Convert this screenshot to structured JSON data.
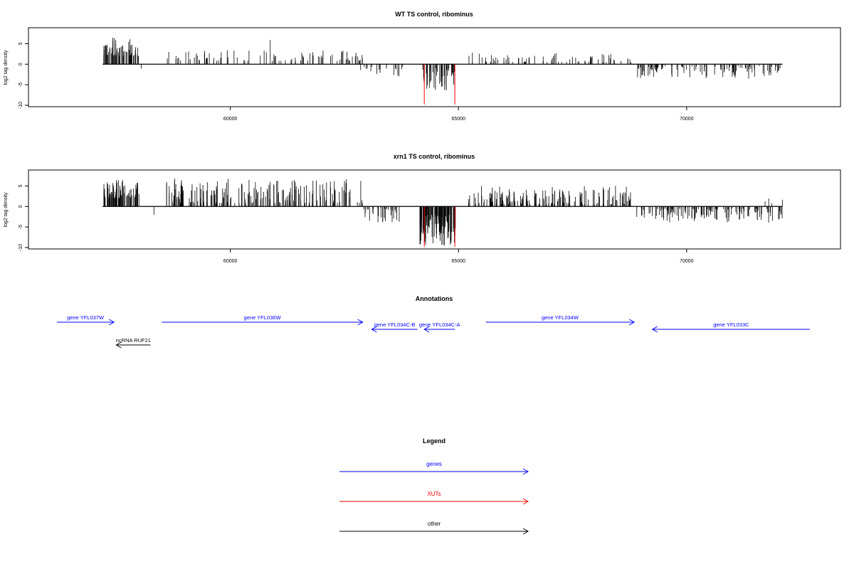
{
  "chart_data": [
    {
      "type": "bar",
      "title": "WT TS control, ribominus",
      "xlabel": "",
      "ylabel": "log2 tag density",
      "xlim": [
        56200,
        72700
      ],
      "ylim": [
        -10,
        7.5
      ],
      "x_ticks": [
        60000,
        65000,
        70000
      ],
      "x_tick_labels": [
        "60000",
        "65000",
        "70000"
      ],
      "y_ticks": [
        5,
        0,
        -5,
        -10
      ],
      "y_tick_labels": [
        "5",
        "0",
        "-5",
        "-10"
      ],
      "baseline": 0,
      "grid": false,
      "regions": [
        {
          "start": 57200,
          "end": 58000,
          "sign": 1,
          "min": 2.0,
          "max": 6.5,
          "count": 60,
          "seed": 11
        },
        {
          "start": 58000,
          "end": 58100,
          "sign": -1,
          "min": 1.0,
          "max": 1.4,
          "count": 1,
          "seed": 12
        },
        {
          "start": 58600,
          "end": 62900,
          "sign": 1,
          "min": 0.8,
          "max": 3.5,
          "count": 90,
          "seed": 13
        },
        {
          "start": 60850,
          "end": 60900,
          "sign": 1,
          "min": 5.9,
          "max": 6.0,
          "count": 1,
          "seed": 14
        },
        {
          "start": 62850,
          "end": 63800,
          "sign": -1,
          "min": 0.5,
          "max": 3.0,
          "count": 20,
          "seed": 15
        },
        {
          "start": 64200,
          "end": 64950,
          "sign": -1,
          "min": 1.0,
          "max": 6.5,
          "count": 45,
          "seed": 16
        },
        {
          "start": 65200,
          "end": 68800,
          "sign": 1,
          "min": 0.5,
          "max": 2.8,
          "count": 75,
          "seed": 17
        },
        {
          "start": 68900,
          "end": 72100,
          "sign": -1,
          "min": 0.5,
          "max": 3.5,
          "count": 110,
          "seed": 18
        }
      ],
      "red_spikes": [
        {
          "x": 64250,
          "y": -9.8
        },
        {
          "x": 64920,
          "y": -9.8
        }
      ]
    },
    {
      "type": "bar",
      "title": "xrn1 TS control, ribominus",
      "xlabel": "",
      "ylabel": "log2 tag density",
      "xlim": [
        56200,
        72700
      ],
      "ylim": [
        -10,
        7.5
      ],
      "x_ticks": [
        60000,
        65000,
        70000
      ],
      "x_tick_labels": [
        "60000",
        "65000",
        "70000"
      ],
      "y_ticks": [
        5,
        0,
        -5,
        -10
      ],
      "y_tick_labels": [
        "5",
        "0",
        "-5",
        "-10"
      ],
      "baseline": 0,
      "grid": false,
      "regions": [
        {
          "start": 57200,
          "end": 58000,
          "sign": 1,
          "min": 2.0,
          "max": 6.8,
          "count": 80,
          "seed": 21
        },
        {
          "start": 58300,
          "end": 58350,
          "sign": -1,
          "min": 2.0,
          "max": 2.2,
          "count": 1,
          "seed": 22
        },
        {
          "start": 58600,
          "end": 62900,
          "sign": 1,
          "min": 0.8,
          "max": 6.8,
          "count": 200,
          "seed": 23
        },
        {
          "start": 62900,
          "end": 63800,
          "sign": -1,
          "min": 0.5,
          "max": 4.0,
          "count": 35,
          "seed": 24
        },
        {
          "start": 64150,
          "end": 64950,
          "sign": -1,
          "min": 2.0,
          "max": 9.5,
          "count": 120,
          "seed": 25
        },
        {
          "start": 65200,
          "end": 68800,
          "sign": 1,
          "min": 0.5,
          "max": 5.0,
          "count": 170,
          "seed": 26
        },
        {
          "start": 68900,
          "end": 72100,
          "sign": -1,
          "min": 0.5,
          "max": 4.0,
          "count": 140,
          "seed": 27
        },
        {
          "start": 71700,
          "end": 72100,
          "sign": 1,
          "min": 0.5,
          "max": 2.5,
          "count": 4,
          "seed": 28
        }
      ],
      "red_spikes": [
        {
          "x": 64250,
          "y": -9.8
        },
        {
          "x": 64920,
          "y": -9.8
        }
      ]
    }
  ],
  "annotations": {
    "title": "Annotations",
    "xlim": [
      56200,
      72700
    ],
    "items": [
      {
        "label": "gene YFL037W",
        "type": "gene",
        "start": 56200,
        "end": 57450,
        "strand": "+",
        "row": 0
      },
      {
        "label": "gene YFL036W",
        "type": "gene",
        "start": 58500,
        "end": 62900,
        "strand": "+",
        "row": 0
      },
      {
        "label": "gene YFL034C-B",
        "type": "gene",
        "start": 63100,
        "end": 64100,
        "strand": "-",
        "row": 1
      },
      {
        "label": "gene YFL034C-A",
        "type": "gene",
        "start": 64250,
        "end": 64920,
        "strand": "-",
        "row": 1
      },
      {
        "label": "gene YFL034W",
        "type": "gene",
        "start": 65600,
        "end": 68850,
        "strand": "+",
        "row": 0
      },
      {
        "label": "gene YFL033C",
        "type": "gene",
        "start": 69250,
        "end": 72700,
        "strand": "-",
        "row": 1
      },
      {
        "label": "ncRNA RUF21",
        "type": "other",
        "start": 57500,
        "end": 58250,
        "strand": "-",
        "row": 3
      }
    ]
  },
  "legend": {
    "title": "Legend",
    "entries": [
      {
        "label": "genes",
        "color": "#0000ff"
      },
      {
        "label": "XUTs",
        "color": "#ff0000"
      },
      {
        "label": "other",
        "color": "#000000"
      }
    ]
  },
  "colors": {
    "gene": "#0000ff",
    "xut": "#ff0000",
    "other": "#000000",
    "bars": "#000000",
    "spikes": "#ff0000"
  }
}
